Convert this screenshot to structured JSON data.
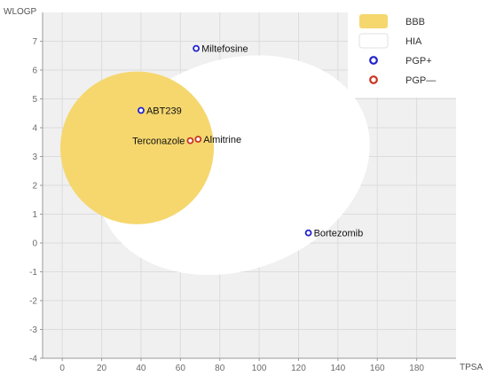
{
  "chart_data": {
    "type": "scatter",
    "title": "",
    "xlabel": "TPSA",
    "ylabel": "WLOGP",
    "xlim": [
      -10,
      200
    ],
    "ylim": [
      -4,
      8
    ],
    "x_ticks": [
      0,
      20,
      40,
      60,
      80,
      100,
      120,
      140,
      160,
      180
    ],
    "y_ticks": [
      -4,
      -3,
      -2,
      -1,
      0,
      1,
      2,
      3,
      4,
      5,
      6,
      7
    ],
    "grid": true,
    "legend_position": "top-right",
    "regions": [
      {
        "name": "BBB",
        "color": "#f5d76e",
        "center": [
          38,
          3.3
        ],
        "radii": [
          39,
          2.65
        ],
        "rotation": 0
      },
      {
        "name": "HIA",
        "color": "#ffffff",
        "center": [
          87,
          2.7
        ],
        "radii": [
          71,
          3.65
        ],
        "rotation": -20
      }
    ],
    "series": [
      {
        "name": "PGP+",
        "color": "#2222cc",
        "points": [
          {
            "label": "Miltefosine",
            "x": 68,
            "y": 6.75
          },
          {
            "label": "ABT239",
            "x": 40,
            "y": 4.6
          },
          {
            "label": "Bortezomib",
            "x": 125,
            "y": 0.35
          }
        ]
      },
      {
        "name": "PGP—",
        "color": "#cc3322",
        "points": [
          {
            "label": "Terconazole",
            "x": 65,
            "y": 3.55
          },
          {
            "label": "Almitrine",
            "x": 69,
            "y": 3.6
          }
        ]
      }
    ],
    "legend": [
      {
        "label": "BBB",
        "kind": "region",
        "color": "#f5d76e"
      },
      {
        "label": "HIA",
        "kind": "region",
        "color": "#ffffff"
      },
      {
        "label": "PGP+",
        "kind": "marker",
        "color": "#2222cc"
      },
      {
        "label": "PGP—",
        "kind": "marker",
        "color": "#cc3322"
      }
    ]
  }
}
